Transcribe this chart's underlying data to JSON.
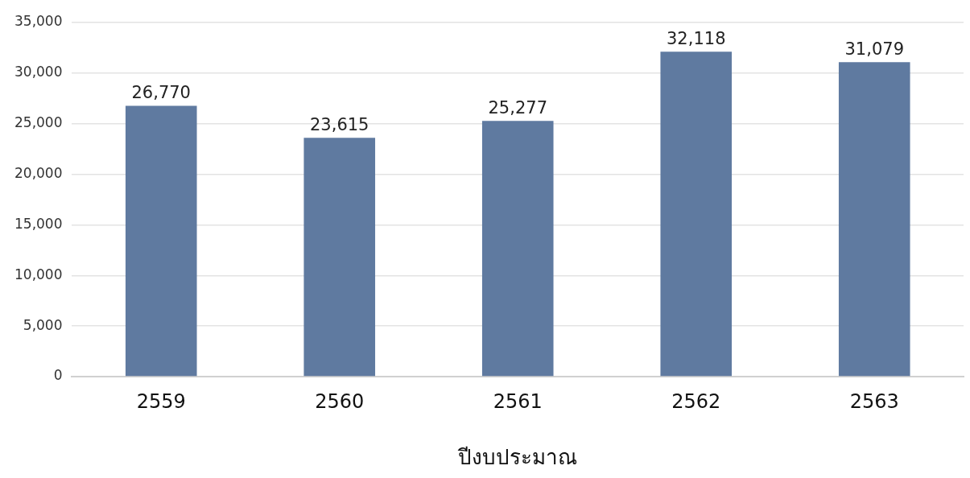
{
  "chart_data": {
    "type": "bar",
    "xlabel": "ปีงบประมาณ",
    "categories": [
      "2559",
      "2560",
      "2561",
      "2562",
      "2563"
    ],
    "values": [
      26770,
      23615,
      25277,
      32118,
      31079
    ],
    "color": "#5f7aa0",
    "ylim": [
      0,
      35000
    ],
    "yticks": [
      {
        "value": 0,
        "label": "0"
      },
      {
        "value": 5000,
        "label": "5,000"
      },
      {
        "value": 10000,
        "label": "10,000"
      },
      {
        "value": 15000,
        "label": "15,000"
      },
      {
        "value": 20000,
        "label": "20,000"
      },
      {
        "value": 25000,
        "label": "25,000"
      },
      {
        "value": 30000,
        "label": "30,000"
      },
      {
        "value": 35000,
        "label": "35,000"
      }
    ],
    "value_labels": [
      "26,770",
      "23,615",
      "25,277",
      "32,118",
      "31,079"
    ],
    "grid": "y"
  }
}
